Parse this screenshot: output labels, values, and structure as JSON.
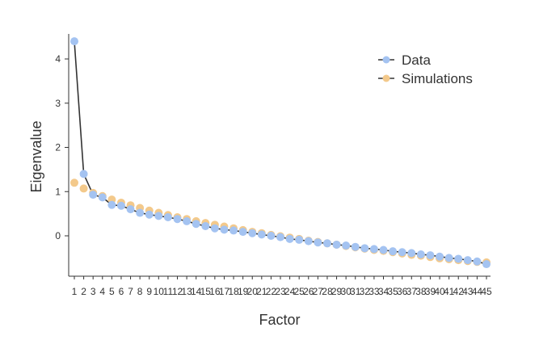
{
  "chart_data": {
    "type": "scatter",
    "title": "",
    "xlabel": "Factor",
    "ylabel": "Eigenvalue",
    "xlim": [
      1,
      45
    ],
    "ylim": [
      -0.8,
      4.6
    ],
    "yticks": [
      0,
      1,
      2,
      3,
      4
    ],
    "x": [
      1,
      2,
      3,
      4,
      5,
      6,
      7,
      8,
      9,
      10,
      11,
      12,
      13,
      14,
      15,
      16,
      17,
      18,
      19,
      20,
      21,
      22,
      23,
      24,
      25,
      26,
      27,
      28,
      29,
      30,
      31,
      32,
      33,
      34,
      35,
      36,
      37,
      38,
      39,
      40,
      41,
      42,
      43,
      44,
      45
    ],
    "xtick_labels": [
      "1",
      "2",
      "3",
      "4",
      "5",
      "6",
      "7",
      "8",
      "9",
      "10",
      "11",
      "12",
      "13",
      "14",
      "15",
      "16",
      "17",
      "18",
      "19",
      "20",
      "21",
      "22",
      "23",
      "24",
      "25",
      "26",
      "27",
      "28",
      "29",
      "30",
      "31",
      "32",
      "33",
      "34",
      "35",
      "36",
      "37",
      "38",
      "39",
      "40",
      "41",
      "42",
      "43",
      "44",
      "45"
    ],
    "grid": false,
    "legend_position": "top-right",
    "series": [
      {
        "name": "Data",
        "color": "#a4c3f1",
        "line_color": "#333333",
        "values": [
          4.4,
          1.4,
          0.93,
          0.87,
          0.7,
          0.68,
          0.6,
          0.52,
          0.48,
          0.45,
          0.42,
          0.38,
          0.33,
          0.27,
          0.22,
          0.17,
          0.14,
          0.12,
          0.09,
          0.06,
          0.03,
          0.0,
          -0.03,
          -0.07,
          -0.09,
          -0.12,
          -0.15,
          -0.17,
          -0.2,
          -0.22,
          -0.25,
          -0.28,
          -0.3,
          -0.32,
          -0.35,
          -0.37,
          -0.39,
          -0.42,
          -0.44,
          -0.47,
          -0.5,
          -0.52,
          -0.55,
          -0.58,
          -0.64
        ]
      },
      {
        "name": "Simulations",
        "color": "#f3c98b",
        "values": [
          1.2,
          1.07,
          0.97,
          0.9,
          0.82,
          0.75,
          0.69,
          0.63,
          0.57,
          0.52,
          0.47,
          0.42,
          0.38,
          0.33,
          0.29,
          0.25,
          0.21,
          0.17,
          0.13,
          0.09,
          0.06,
          0.02,
          -0.01,
          -0.04,
          -0.07,
          -0.11,
          -0.14,
          -0.17,
          -0.2,
          -0.23,
          -0.26,
          -0.29,
          -0.32,
          -0.34,
          -0.37,
          -0.4,
          -0.43,
          -0.45,
          -0.48,
          -0.51,
          -0.53,
          -0.55,
          -0.57,
          -0.59,
          -0.6
        ]
      }
    ]
  }
}
